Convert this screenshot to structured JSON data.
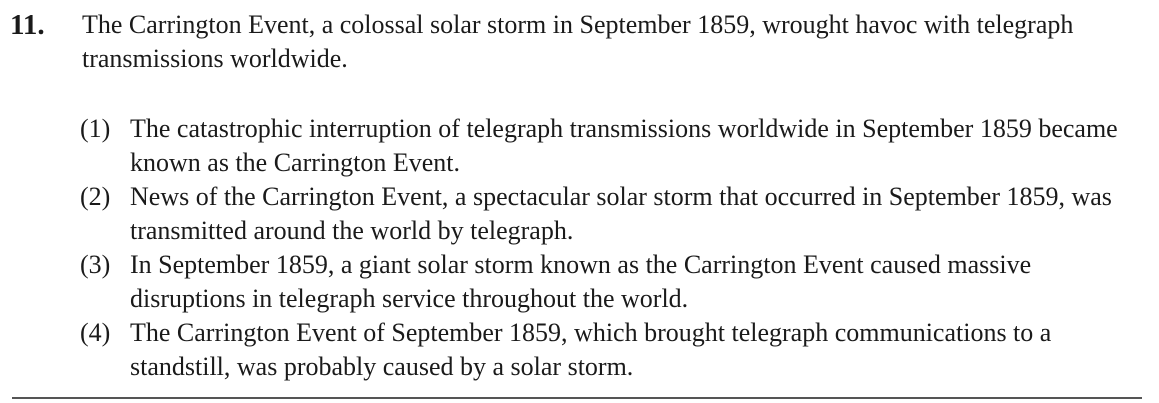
{
  "question": {
    "number": "11.",
    "stem": "The Carrington Event, a colossal solar storm in September 1859, wrought havoc with telegraph transmissions worldwide.",
    "options": [
      {
        "label": "(1)",
        "text": "The catastrophic interruption of telegraph transmissions worldwide in September 1859 became known as the Carrington Event."
      },
      {
        "label": "(2)",
        "text": "News of the Carrington Event, a spectacular solar storm that occurred in September 1859, was transmitted around the world by telegraph."
      },
      {
        "label": "(3)",
        "text": "In September 1859, a giant solar storm known as the Carrington Event caused massive disruptions in telegraph service throughout the world."
      },
      {
        "label": "(4)",
        "text": "The Carrington Event of September 1859, which brought telegraph communications to a standstill, was probably caused by a solar storm."
      }
    ]
  }
}
